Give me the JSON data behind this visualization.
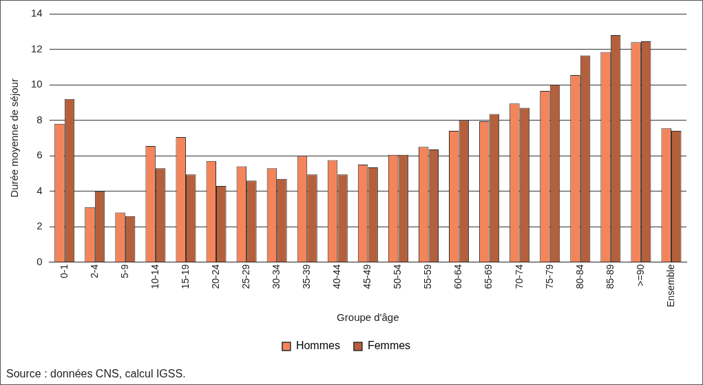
{
  "chart_data": {
    "type": "bar",
    "xlabel": "Groupe d'âge",
    "ylabel": "Durée moyenne de séjour",
    "categories": [
      "0-1",
      "2-4",
      "5-9",
      "10-14",
      "15-19",
      "20-24",
      "25-29",
      "30-34",
      "35-39",
      "40-44",
      "45-49",
      "50-54",
      "55-59",
      "60-64",
      "65-69",
      "70-74",
      "75-79",
      "80-84",
      "85-89",
      ">=90",
      "Ensemble"
    ],
    "series": [
      {
        "name": "Hommes",
        "color": "#f4845a",
        "values": [
          7.8,
          3.1,
          2.8,
          6.55,
          7.05,
          5.7,
          5.4,
          5.3,
          6.0,
          5.75,
          5.5,
          6.05,
          6.5,
          7.4,
          7.95,
          8.95,
          9.65,
          10.55,
          11.85,
          12.4,
          7.55
        ]
      },
      {
        "name": "Femmes",
        "color": "#b5603c",
        "values": [
          9.2,
          4.0,
          2.6,
          5.3,
          4.95,
          4.3,
          4.6,
          4.7,
          4.95,
          4.95,
          5.35,
          6.05,
          6.35,
          8.0,
          8.35,
          8.7,
          10.0,
          11.65,
          12.8,
          12.45,
          7.4
        ]
      }
    ],
    "ylim": [
      0,
      14
    ],
    "yticks": [
      0,
      2,
      4,
      6,
      8,
      10,
      12,
      14
    ],
    "grid": "y",
    "legend": "bottom",
    "annotations": [
      "Source : données CNS, calcul IGSS."
    ]
  }
}
